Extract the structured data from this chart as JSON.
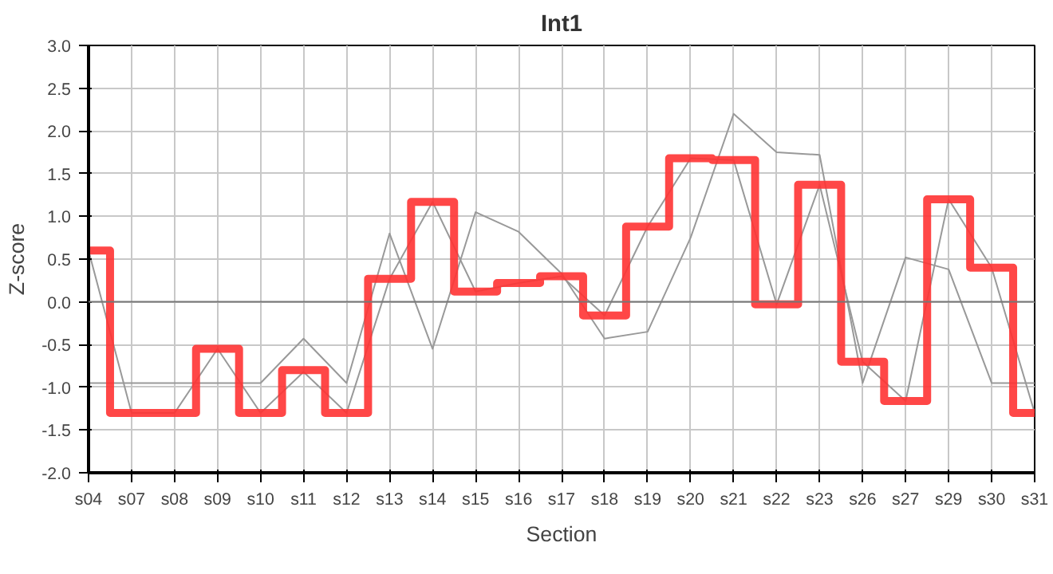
{
  "chart_data": {
    "type": "step",
    "title": "Int1",
    "xlabel": "Section",
    "ylabel": "Z-score",
    "categories": [
      "s04",
      "s07",
      "s08",
      "s09",
      "s10",
      "s11",
      "s12",
      "s13",
      "s14",
      "s15",
      "s16",
      "s17",
      "s18",
      "s19",
      "s20",
      "s21",
      "s22",
      "s23",
      "s26",
      "s27",
      "s29",
      "s30",
      "s31"
    ],
    "series": [
      {
        "type": "line",
        "color": "#999999",
        "values": [
          -0.95,
          -0.95,
          -0.95,
          -0.95,
          -0.95,
          -0.43,
          -0.95,
          0.8,
          -0.55,
          1.05,
          0.82,
          0.33,
          -0.43,
          -0.35,
          0.75,
          2.2,
          1.75,
          1.72,
          -0.95,
          0.52,
          0.38,
          -0.95,
          -0.95
        ]
      },
      {
        "type": "line",
        "color": "#999999",
        "values": [
          0.6,
          -1.3,
          -1.3,
          -0.55,
          -1.3,
          -0.82,
          -1.3,
          0.27,
          1.17,
          0.12,
          0.22,
          0.3,
          -0.16,
          0.88,
          1.68,
          1.66,
          -0.03,
          1.37,
          -0.7,
          -1.16,
          1.2,
          0.4,
          -1.3
        ]
      },
      {
        "color": "#ff3333",
        "values": [
          0.6,
          -1.3,
          -1.3,
          -0.55,
          -1.3,
          -0.8,
          -1.3,
          0.27,
          1.17,
          0.12,
          0.22,
          0.3,
          -0.16,
          0.88,
          1.68,
          1.66,
          -0.03,
          1.37,
          -0.7,
          -1.16,
          1.2,
          0.4,
          -1.3
        ]
      }
    ],
    "ylim": [
      -2.0,
      3.0
    ],
    "yticks": [
      {
        "value": -2,
        "label": "-2.0"
      },
      {
        "value": -1.5,
        "label": "-1.5"
      },
      {
        "value": -1,
        "label": "-1.0"
      },
      {
        "value": -0.5,
        "label": "-0.5"
      },
      {
        "value": 0,
        "label": "0.0"
      },
      {
        "value": 0.5,
        "label": "0.5"
      },
      {
        "value": 1,
        "label": "1.0"
      },
      {
        "value": 1.5,
        "label": "1.5"
      },
      {
        "value": 2,
        "label": "2.0"
      },
      {
        "value": 2.5,
        "label": "2.5"
      },
      {
        "value": 3,
        "label": "3.0"
      }
    ],
    "ref_lines": [
      {
        "axis": "y",
        "value": 0,
        "color": "#777777"
      }
    ],
    "grid": true
  }
}
